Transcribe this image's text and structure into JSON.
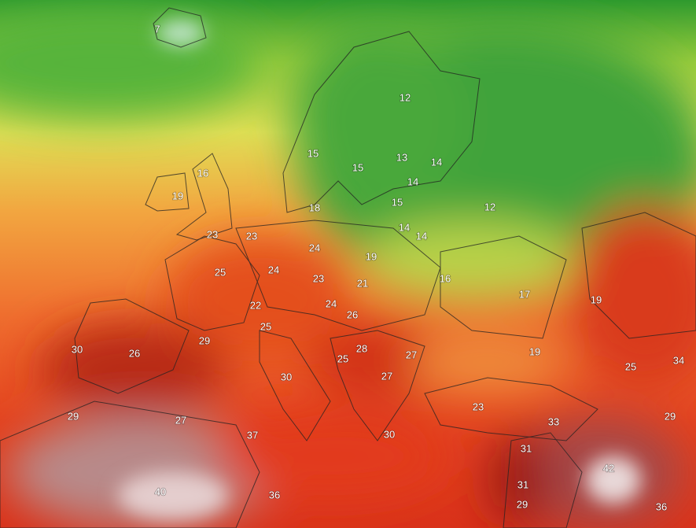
{
  "map": {
    "labels": [
      7,
      12,
      15,
      15,
      13,
      14,
      14,
      16,
      19,
      18,
      15,
      12,
      14,
      14,
      23,
      23,
      24,
      19,
      25,
      24,
      23,
      21,
      16,
      17,
      19,
      22,
      24,
      26,
      25,
      29,
      30,
      26,
      28,
      27,
      19,
      25,
      25,
      34,
      30,
      27,
      23,
      29,
      27,
      33,
      29,
      37,
      30,
      31,
      42,
      40,
      36,
      31,
      29,
      36
    ]
  }
}
